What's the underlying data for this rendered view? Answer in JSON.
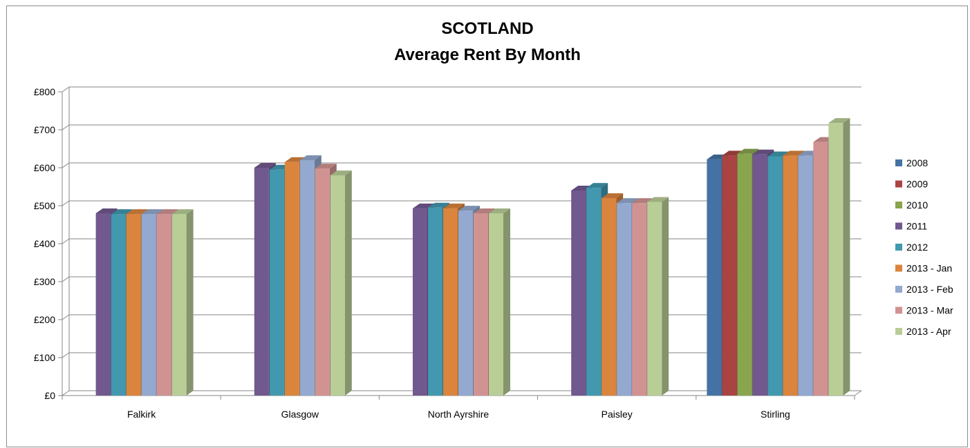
{
  "chart_data": {
    "type": "bar",
    "title_lines": [
      "SCOTLAND",
      "Average Rent By Month"
    ],
    "xlabel": "",
    "ylabel": "",
    "ylim": [
      0,
      800
    ],
    "yticks": [
      0,
      100,
      200,
      300,
      400,
      500,
      600,
      700,
      800
    ],
    "ytick_labels": [
      "£0",
      "£100",
      "£200",
      "£300",
      "£400",
      "£500",
      "£600",
      "£700",
      "£800"
    ],
    "grid": true,
    "legend_position": "right",
    "categories": [
      "Falkirk",
      "Glasgow",
      "North Ayrshire",
      "Paisley",
      "Stirling"
    ],
    "series": [
      {
        "name": "2008",
        "color": "#4472a4",
        "values": [
          null,
          null,
          null,
          null,
          622
        ]
      },
      {
        "name": "2009",
        "color": "#aa4442",
        "values": [
          null,
          null,
          null,
          null,
          632
        ]
      },
      {
        "name": "2010",
        "color": "#89a54e",
        "values": [
          null,
          null,
          null,
          null,
          637
        ]
      },
      {
        "name": "2011",
        "color": "#71588f",
        "values": [
          480,
          600,
          493,
          540,
          635
        ]
      },
      {
        "name": "2012",
        "color": "#4198af",
        "values": [
          478,
          595,
          495,
          547,
          630
        ]
      },
      {
        "name": "2013 - Jan",
        "color": "#db843d",
        "values": [
          478,
          615,
          493,
          520,
          632
        ]
      },
      {
        "name": "2013 - Feb",
        "color": "#93a9cf",
        "values": [
          478,
          620,
          487,
          507,
          632
        ]
      },
      {
        "name": "2013 - Mar",
        "color": "#d19392",
        "values": [
          478,
          598,
          480,
          507,
          668
        ]
      },
      {
        "name": "2013 - Apr",
        "color": "#b9cd96",
        "values": [
          478,
          580,
          480,
          510,
          718
        ]
      }
    ]
  }
}
